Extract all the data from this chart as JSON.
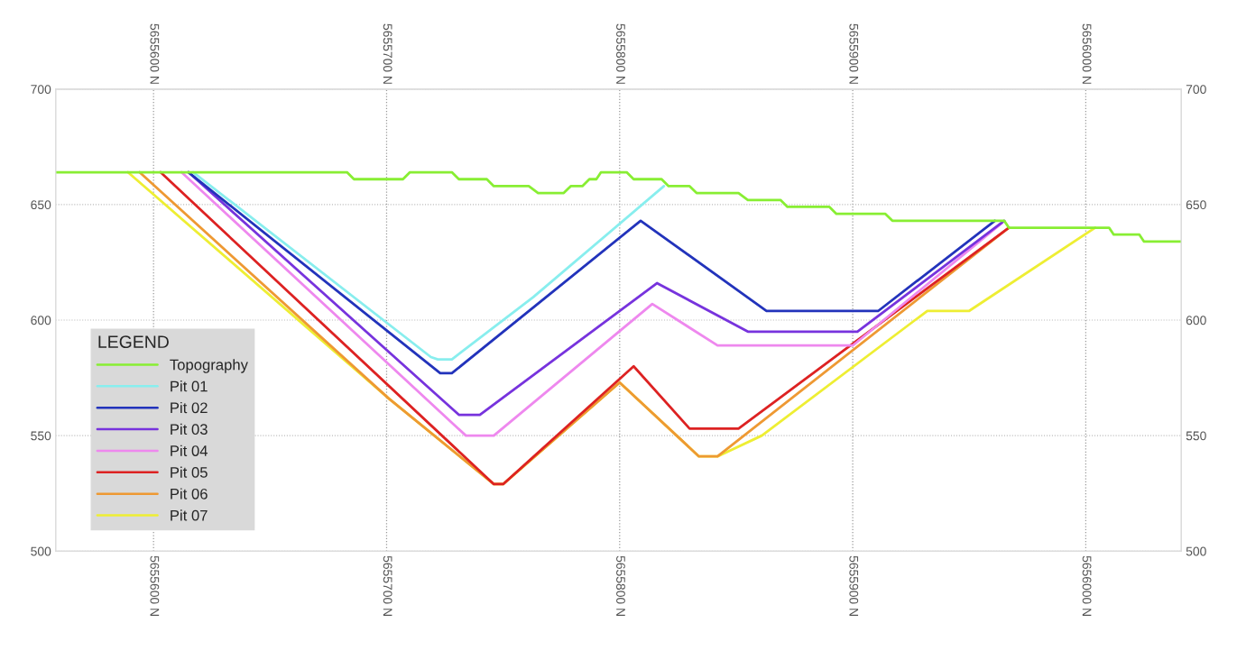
{
  "chart_data": {
    "type": "line",
    "xlim": [
      5655558,
      5656041
    ],
    "xticks": [
      {
        "value": 5655600,
        "label": "5655600 N"
      },
      {
        "value": 5655700,
        "label": "5655700 N"
      },
      {
        "value": 5655800,
        "label": "5655800 N"
      },
      {
        "value": 5655900,
        "label": "5655900 N"
      },
      {
        "value": 5656000,
        "label": "5656000 N"
      }
    ],
    "x2lim": [
      5655558,
      5656041
    ],
    "x2ticks": [
      {
        "value": 5655600,
        "label": "5655600 N"
      },
      {
        "value": 5655700,
        "label": "5655700 N"
      },
      {
        "value": 5655800,
        "label": "5655800 N"
      },
      {
        "value": 5655900,
        "label": "5655900 N"
      },
      {
        "value": 5656000,
        "label": "5656000 N"
      }
    ],
    "ylim": [
      500,
      700
    ],
    "yticks": [
      500,
      550,
      600,
      650,
      700
    ],
    "y2lim": [
      500,
      700
    ],
    "y2ticks": [
      500,
      550,
      600,
      650,
      700
    ],
    "grid": true,
    "legend": "bottom left",
    "legend_title": "LEGEND",
    "series": [
      {
        "name": "Topography",
        "color": "#88ee33",
        "x": [
          5655558,
          5655683,
          5655686,
          5655707,
          5655710,
          5655728,
          5655731,
          5655743,
          5655746,
          5655761,
          5655765,
          5655776,
          5655779,
          5655784,
          5655787,
          5655790,
          5655792,
          5655803,
          5655806,
          5655818,
          5655821,
          5655830,
          5655833,
          5655851,
          5655855,
          5655869,
          5655872,
          5655890,
          5655893,
          5655914,
          5655917,
          5655965,
          5655967,
          5656010,
          5656012,
          5656023,
          5656025,
          5656041
        ],
        "values": [
          664,
          664,
          661,
          661,
          664,
          664,
          661,
          661,
          658,
          658,
          655,
          655,
          658,
          658,
          661,
          661,
          664,
          664,
          661,
          661,
          658,
          658,
          655,
          655,
          652,
          652,
          649,
          649,
          646,
          646,
          643,
          643,
          640,
          640,
          637,
          637,
          634,
          634
        ]
      },
      {
        "name": "Pit 01",
        "color": "#88eeee",
        "x": [
          5655617,
          5655719,
          5655722,
          5655728,
          5655763,
          5655819
        ],
        "values": [
          664,
          584,
          583,
          583,
          610,
          658
        ]
      },
      {
        "name": "Pit 02",
        "color": "#2233bb",
        "x": [
          5655615,
          5655723,
          5655728,
          5655809,
          5655863,
          5655911,
          5655961
        ],
        "values": [
          664,
          577,
          577,
          643,
          604,
          604,
          643
        ]
      },
      {
        "name": "Pit 03",
        "color": "#7733dd",
        "x": [
          5655615,
          5655731,
          5655740,
          5655816,
          5655855,
          5655902,
          5655965
        ],
        "values": [
          664,
          559,
          559,
          616,
          595,
          595,
          643
        ]
      },
      {
        "name": "Pit 04",
        "color": "#ee88ee",
        "x": [
          5655612,
          5655734,
          5655746,
          5655814,
          5655842,
          5655900,
          5655964
        ],
        "values": [
          664,
          550,
          550,
          607,
          589,
          589,
          642
        ]
      },
      {
        "name": "Pit 05",
        "color": "#dd2222",
        "x": [
          5655603,
          5655746,
          5655750,
          5655806,
          5655830,
          5655851,
          5655967
        ],
        "values": [
          664,
          529,
          529,
          580,
          553,
          553,
          640
        ]
      },
      {
        "name": "Pit 06",
        "color": "#ee9933",
        "x": [
          5655594,
          5655701,
          5655746,
          5655750,
          5655800,
          5655834,
          5655842,
          5655967
        ],
        "values": [
          664,
          566,
          529,
          529,
          573,
          541,
          541,
          640
        ]
      },
      {
        "name": "Pit 07",
        "color": "#eeee33",
        "x": [
          5655589,
          5655701,
          5655746,
          5655750,
          5655800,
          5655834,
          5655842,
          5655861,
          5655932,
          5655950,
          5656004
        ],
        "values": [
          664,
          566,
          529,
          529,
          573,
          541,
          541,
          550,
          604,
          604,
          640
        ]
      }
    ]
  }
}
